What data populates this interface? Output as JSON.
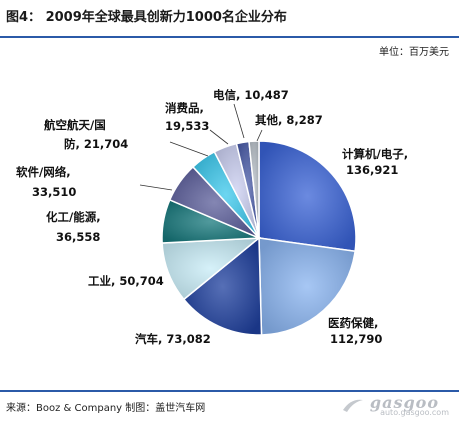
{
  "header": {
    "title": "图4：  2009年全球最具创新力1000名企业分布",
    "unit": "单位：百万美元"
  },
  "footer": {
    "source": "来源：Booz & Company 制图：盖世汽车网",
    "watermark": "gasgoo",
    "watermark_url": "auto.gasgoo.com"
  },
  "chart_data": {
    "type": "pie",
    "title": "图4：  2009年全球最具创新力1000名企业分布",
    "unit": "单位：百万美元",
    "start_angle_deg": 0,
    "direction": "clockwise",
    "style": "3d-shaded",
    "slices": [
      {
        "label": "计算机/电子",
        "value": 136921,
        "value_text": "136,921",
        "color": "#3a63d6"
      },
      {
        "label": "医药保健",
        "value": 112790,
        "value_text": "112,790",
        "color": "#8ab4f0"
      },
      {
        "label": "汽车",
        "value": 73082,
        "value_text": "73,082",
        "color": "#1e3f9e"
      },
      {
        "label": "工业",
        "value": 50704,
        "value_text": "50,704",
        "color": "#c8ecf7"
      },
      {
        "label": "化工/能源",
        "value": 36558,
        "value_text": "36,558",
        "color": "#17787c"
      },
      {
        "label": "软件/网络",
        "value": 33510,
        "value_text": "33,510",
        "color": "#5b5d9a"
      },
      {
        "label": "航空航天/国防",
        "value": 21704,
        "value_text": "21,704",
        "color": "#3cc8ec"
      },
      {
        "label": "消费品",
        "value": 19533,
        "value_text": "19,533",
        "color": "#c9cef0"
      },
      {
        "label": "电信",
        "value": 10487,
        "value_text": "10,487",
        "color": "#4a5ca8"
      },
      {
        "label": "其他",
        "value": 8287,
        "value_text": "8,287",
        "color": "#b8c0c8"
      }
    ]
  }
}
